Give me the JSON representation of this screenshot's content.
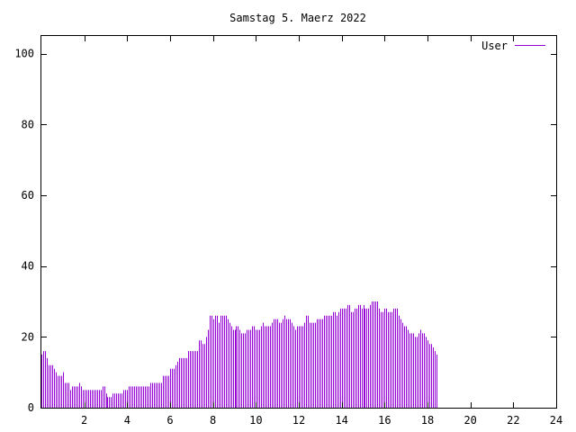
{
  "chart_data": {
    "type": "bar",
    "title": "Samstag 5. Maerz 2022",
    "xlabel": "",
    "ylabel": "",
    "xlim": [
      0,
      24
    ],
    "ylim": [
      0,
      105
    ],
    "x_ticks": [
      "2",
      "4",
      "6",
      "8",
      "10",
      "12",
      "14",
      "16",
      "18",
      "20",
      "22",
      "24"
    ],
    "y_ticks": [
      "0",
      "20",
      "40",
      "60",
      "80",
      "100"
    ],
    "legend": {
      "position": "top-right"
    },
    "grid": false,
    "series": [
      {
        "name": "User",
        "color": "#9400d3",
        "interval_minutes": 5,
        "values": [
          15,
          16,
          16,
          14,
          12,
          12,
          12,
          11,
          10,
          9,
          9,
          9,
          10,
          7,
          7,
          7,
          5,
          6,
          6,
          6,
          6,
          7,
          6,
          5,
          5,
          5,
          5,
          5,
          5,
          5,
          5,
          5,
          5,
          5,
          6,
          6,
          4,
          3,
          3,
          3,
          4,
          4,
          4,
          4,
          4,
          4,
          5,
          5,
          5,
          6,
          6,
          6,
          6,
          6,
          6,
          6,
          6,
          6,
          6,
          6,
          6,
          7,
          7,
          7,
          7,
          7,
          7,
          7,
          9,
          9,
          9,
          9,
          11,
          11,
          11,
          12,
          13,
          14,
          14,
          14,
          14,
          14,
          16,
          16,
          16,
          16,
          16,
          16,
          19,
          19,
          18,
          18,
          20,
          22,
          26,
          26,
          25,
          26,
          26,
          24,
          26,
          26,
          26,
          26,
          25,
          24,
          23,
          22,
          22,
          23,
          23,
          22,
          21,
          21,
          21,
          22,
          22,
          22,
          23,
          23,
          22,
          22,
          22,
          23,
          24,
          23,
          23,
          23,
          23,
          24,
          25,
          25,
          25,
          24,
          24,
          25,
          26,
          25,
          25,
          25,
          24,
          23,
          22,
          23,
          23,
          23,
          23,
          24,
          26,
          26,
          24,
          24,
          24,
          24,
          25,
          25,
          25,
          25,
          26,
          26,
          26,
          26,
          26,
          27,
          27,
          26,
          27,
          28,
          28,
          28,
          28,
          29,
          29,
          27,
          27,
          28,
          28,
          29,
          29,
          28,
          29,
          28,
          28,
          28,
          29,
          30,
          30,
          30,
          30,
          28,
          27,
          27,
          28,
          28,
          27,
          27,
          27,
          28,
          28,
          28,
          26,
          25,
          24,
          23,
          23,
          22,
          21,
          21,
          21,
          20,
          20,
          21,
          22,
          21,
          21,
          20,
          19,
          18,
          18,
          17,
          16,
          15
        ]
      }
    ]
  }
}
